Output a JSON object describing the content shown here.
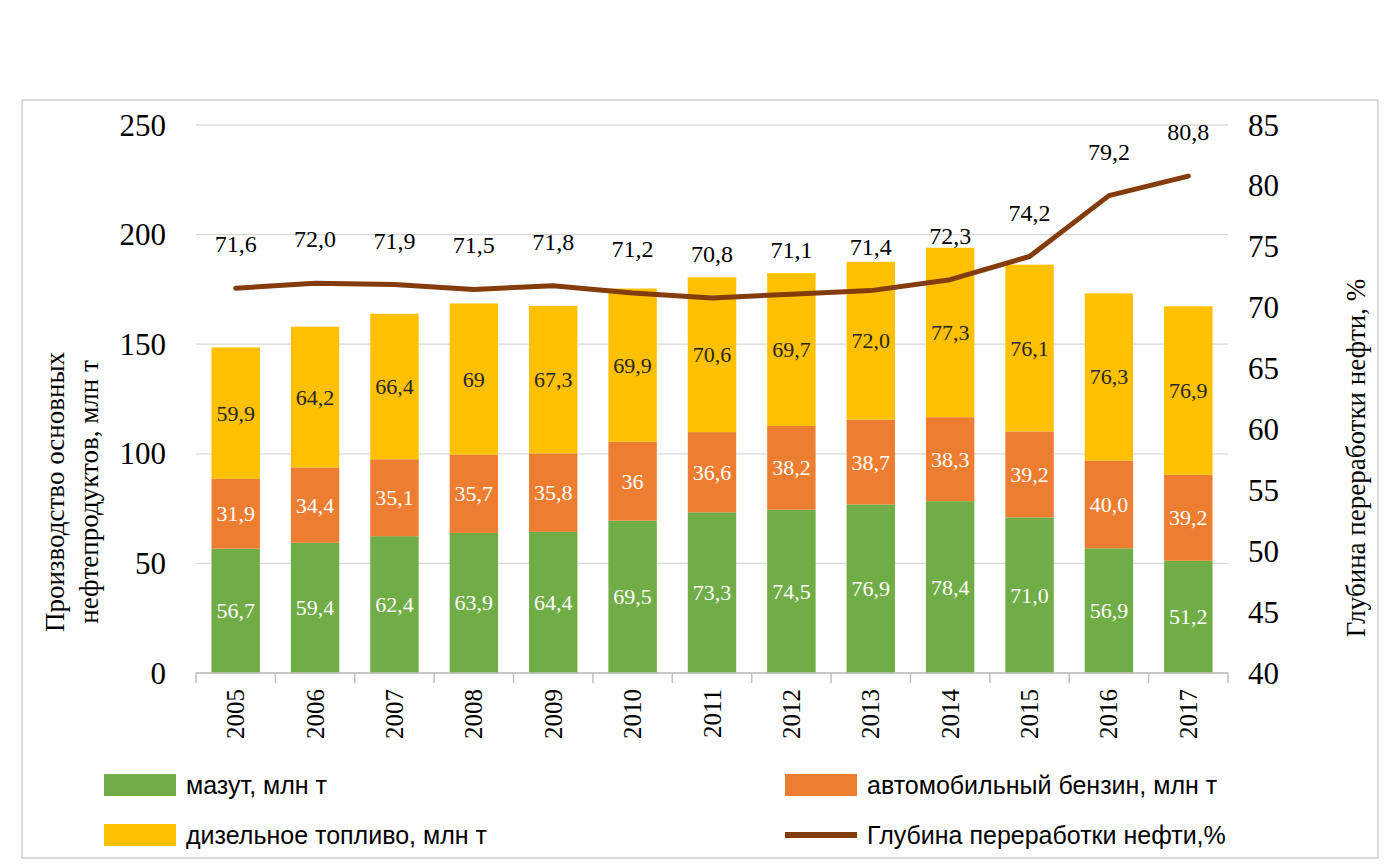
{
  "chart_data": {
    "type": "bar",
    "stacked": true,
    "data_labels": true,
    "grid": true,
    "legend": "bottom",
    "ylabel": "Производство основных нефтепродуктов, млн т",
    "y2label": "Глубина переработки нефти, %",
    "categories": [
      "2005",
      "2006",
      "2007",
      "2008",
      "2009",
      "2010",
      "2011",
      "2012",
      "2013",
      "2014",
      "2015",
      "2016",
      "2017"
    ],
    "ylim": [
      0,
      250
    ],
    "yticks": [
      0,
      50,
      100,
      150,
      200,
      250
    ],
    "y2lim": [
      40,
      85
    ],
    "y2ticks": [
      40,
      45,
      50,
      55,
      60,
      65,
      70,
      75,
      80,
      85
    ],
    "series": [
      {
        "name": "мазут, млн т",
        "color": "#70ad47",
        "type": "bar",
        "values": [
          56.7,
          59.4,
          62.4,
          63.9,
          64.4,
          69.5,
          73.3,
          74.5,
          76.9,
          78.4,
          71.0,
          56.9,
          51.2
        ],
        "value_labels": [
          "56,7",
          "59,4",
          "62,4",
          "63,9",
          "64,4",
          "69,5",
          "73,3",
          "74,5",
          "76,9",
          "78,4",
          "71,0",
          "56,9",
          "51,2"
        ]
      },
      {
        "name": "автомобильный бензин, млн т",
        "color": "#ed7d31",
        "type": "bar",
        "values": [
          31.9,
          34.4,
          35.1,
          35.7,
          35.8,
          36,
          36.6,
          38.2,
          38.7,
          38.3,
          39.2,
          40.0,
          39.2
        ],
        "value_labels": [
          "31,9",
          "34,4",
          "35,1",
          "35,7",
          "35,8",
          "36",
          "36,6",
          "38,2",
          "38,7",
          "38,3",
          "39,2",
          "40,0",
          "39,2"
        ]
      },
      {
        "name": "дизельное топливо, млн т",
        "color": "#ffc000",
        "type": "bar",
        "values": [
          59.9,
          64.2,
          66.4,
          69,
          67.3,
          69.9,
          70.6,
          69.7,
          72.0,
          77.3,
          76.1,
          76.3,
          76.9
        ],
        "value_labels": [
          "59,9",
          "64,2",
          "66,4",
          "69",
          "67,3",
          "69,9",
          "70,6",
          "69,7",
          "72,0",
          "77,3",
          "76,1",
          "76,3",
          "76,9"
        ]
      },
      {
        "name": "Глубина переработки нефти,%",
        "color": "#843c0c",
        "type": "line",
        "axis": "y2",
        "values": [
          71.6,
          72.0,
          71.9,
          71.5,
          71.8,
          71.2,
          70.8,
          71.1,
          71.4,
          72.3,
          74.2,
          79.2,
          80.8
        ],
        "value_labels": [
          "71,6",
          "72,0",
          "71,9",
          "71,5",
          "71,8",
          "71,2",
          "70,8",
          "71,1",
          "71,4",
          "72,3",
          "74,2",
          "79,2",
          "80,8"
        ]
      }
    ]
  }
}
